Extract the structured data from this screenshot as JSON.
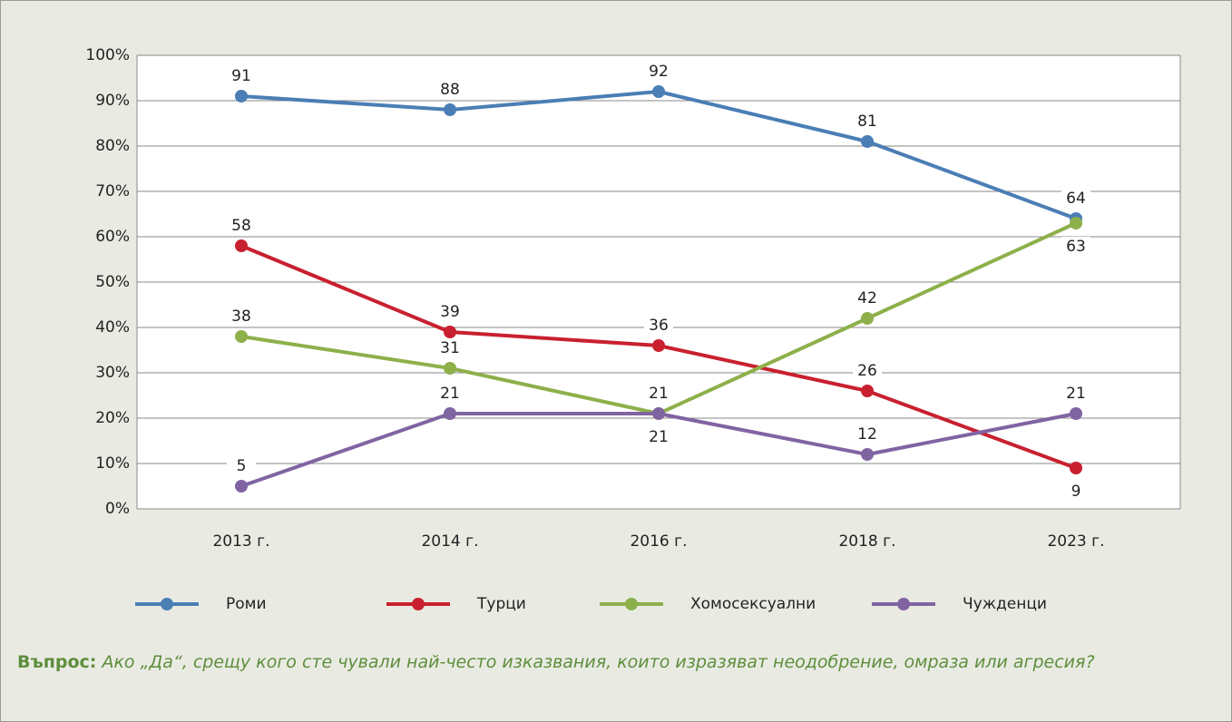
{
  "chart_data": {
    "type": "line",
    "categories": [
      "2013 г.",
      "2014 г.",
      "2016 г.",
      "2018 г.",
      "2023 г."
    ],
    "series": [
      {
        "name": "Роми",
        "color": "#4a7eb5",
        "values": [
          91,
          88,
          92,
          81,
          64
        ]
      },
      {
        "name": "Турци",
        "color": "#c8202f",
        "values": [
          58,
          39,
          36,
          26,
          9
        ]
      },
      {
        "name": "Хомосексуални",
        "color": "#8db04a",
        "values": [
          38,
          31,
          21,
          42,
          63
        ]
      },
      {
        "name": "Чужденци",
        "color": "#8064a2",
        "values": [
          5,
          21,
          21,
          12,
          21
        ]
      }
    ],
    "ylim": [
      0,
      100
    ],
    "yticks": [
      {
        "value": 0,
        "label": "0%"
      },
      {
        "value": 10,
        "label": "10%"
      },
      {
        "value": 20,
        "label": "20%"
      },
      {
        "value": 30,
        "label": "30%"
      },
      {
        "value": 40,
        "label": "40%"
      },
      {
        "value": 50,
        "label": "50%"
      },
      {
        "value": 60,
        "label": "60%"
      },
      {
        "value": 70,
        "label": "70%"
      },
      {
        "value": 80,
        "label": "80%"
      },
      {
        "value": 90,
        "label": "90%"
      },
      {
        "value": 100,
        "label": "100%"
      }
    ],
    "grid": true,
    "legend": "bottom",
    "question_label": "Въпрос:",
    "question_text": "Ако „Да“, срещу кого сте чували най-често изказвания, които изразяват неодобрение, омраза или агресия?"
  }
}
